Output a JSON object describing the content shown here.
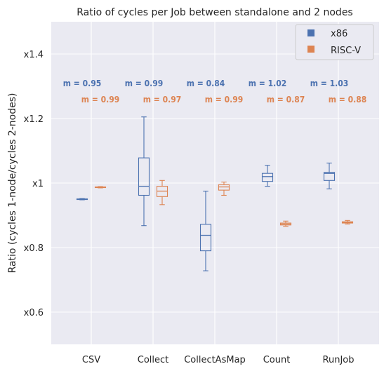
{
  "chart_data": {
    "type": "box",
    "title": "Ratio of cycles per Job between standalone and 2 nodes",
    "xlabel": "",
    "ylabel": "Ratio (cycles 1-node/cycles 2-nodes)",
    "ylim": [
      0.5,
      1.5
    ],
    "yticks": [
      0.6,
      0.8,
      1.0,
      1.2,
      1.4
    ],
    "ytick_labels": [
      "x0.6",
      "x0.8",
      "x1",
      "x1.2",
      "x1.4"
    ],
    "categories": [
      "CSV",
      "Collect",
      "CollectAsMap",
      "Count",
      "RunJob"
    ],
    "grid": true,
    "legend": "top-right",
    "series": [
      {
        "name": "x86",
        "color": "#4c72b0",
        "boxes": [
          {
            "whislo": 0.948,
            "q1": 0.949,
            "med": 0.95,
            "q3": 0.951,
            "whishi": 0.952
          },
          {
            "whislo": 0.868,
            "q1": 0.962,
            "med": 0.99,
            "q3": 1.078,
            "whishi": 1.205
          },
          {
            "whislo": 0.728,
            "q1": 0.79,
            "med": 0.838,
            "q3": 0.872,
            "whishi": 0.975
          },
          {
            "whislo": 0.99,
            "q1": 1.005,
            "med": 1.02,
            "q3": 1.03,
            "whishi": 1.055
          },
          {
            "whislo": 0.982,
            "q1": 1.008,
            "med": 1.03,
            "q3": 1.033,
            "whishi": 1.062
          }
        ],
        "means": [
          "m = 0.95",
          "m = 0.99",
          "m = 0.84",
          "m = 1.02",
          "m = 1.03"
        ]
      },
      {
        "name": "RISC-V",
        "color": "#dd8452",
        "boxes": [
          {
            "whislo": 0.985,
            "q1": 0.986,
            "med": 0.987,
            "q3": 0.988,
            "whishi": 0.989
          },
          {
            "whislo": 0.933,
            "q1": 0.958,
            "med": 0.975,
            "q3": 0.99,
            "whishi": 1.008
          },
          {
            "whislo": 0.962,
            "q1": 0.978,
            "med": 0.988,
            "q3": 0.995,
            "whishi": 1.003
          },
          {
            "whislo": 0.866,
            "q1": 0.87,
            "med": 0.873,
            "q3": 0.876,
            "whishi": 0.882
          },
          {
            "whislo": 0.873,
            "q1": 0.876,
            "med": 0.878,
            "q3": 0.88,
            "whishi": 0.884
          }
        ],
        "means": [
          "m = 0.99",
          "m = 0.97",
          "m = 0.99",
          "m = 0.87",
          "m = 0.88"
        ]
      }
    ]
  }
}
